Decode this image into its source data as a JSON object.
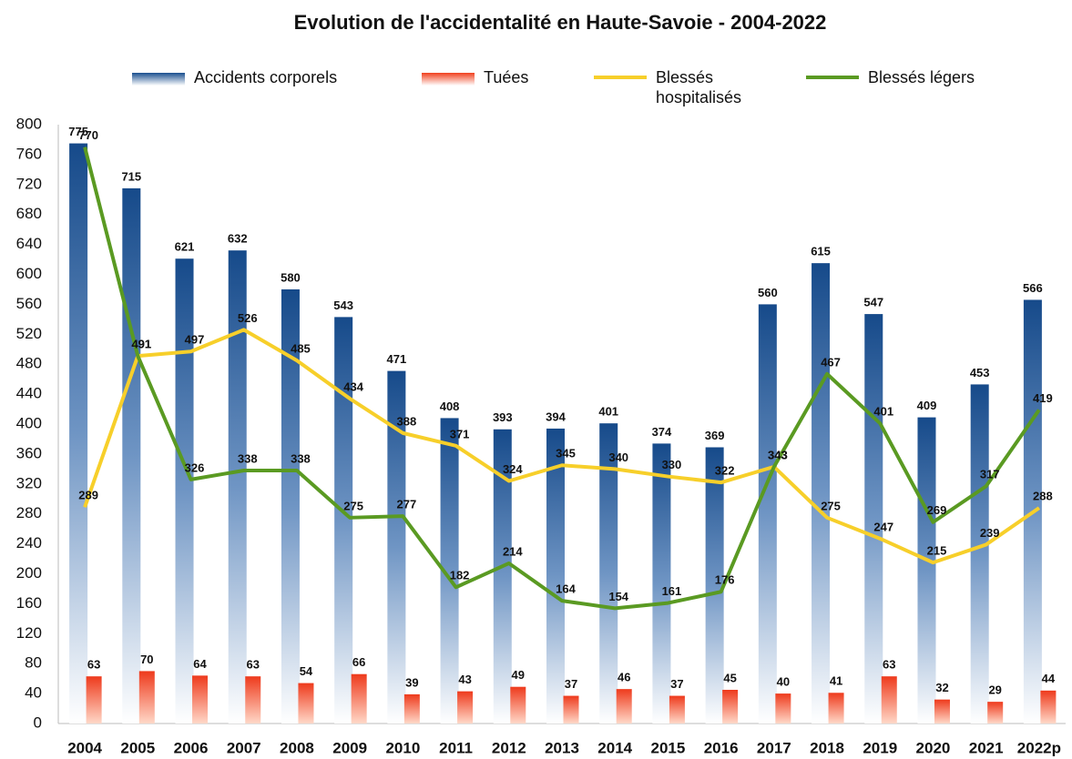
{
  "chart_data": {
    "type": "combo",
    "title": "Evolution de l'accidentalité en Haute-Savoie - 2004-2022",
    "categories": [
      "2004",
      "2005",
      "2006",
      "2007",
      "2008",
      "2009",
      "2010",
      "2011",
      "2012",
      "2013",
      "2014",
      "2015",
      "2016",
      "2017",
      "2018",
      "2019",
      "2020",
      "2021",
      "2022p"
    ],
    "series": [
      {
        "name": "Accidents corporels",
        "type": "bar",
        "color": "#1a4f8f",
        "values": [
          775,
          715,
          621,
          632,
          580,
          543,
          471,
          408,
          393,
          394,
          401,
          374,
          369,
          560,
          615,
          547,
          409,
          453,
          566
        ]
      },
      {
        "name": "Tuées",
        "type": "bar",
        "color": "#f0401e",
        "values": [
          63,
          70,
          64,
          63,
          54,
          66,
          39,
          43,
          49,
          37,
          46,
          37,
          45,
          40,
          41,
          63,
          32,
          29,
          44
        ]
      },
      {
        "name": "Blessés hospitalisés",
        "type": "line",
        "color": "#f7cf2a",
        "values": [
          289,
          491,
          497,
          526,
          485,
          434,
          388,
          371,
          324,
          345,
          340,
          330,
          322,
          343,
          275,
          247,
          215,
          239,
          288
        ]
      },
      {
        "name": "Blessés légers",
        "type": "line",
        "color": "#5a9a22",
        "values": [
          770,
          491,
          326,
          338,
          338,
          275,
          277,
          182,
          214,
          164,
          154,
          161,
          176,
          343,
          467,
          401,
          269,
          317,
          419
        ]
      }
    ],
    "ylim": [
      0,
      800
    ],
    "yticks": [
      0,
      40,
      80,
      120,
      160,
      200,
      240,
      280,
      320,
      360,
      400,
      440,
      480,
      520,
      560,
      600,
      640,
      680,
      720,
      760,
      800
    ],
    "grid": false
  }
}
